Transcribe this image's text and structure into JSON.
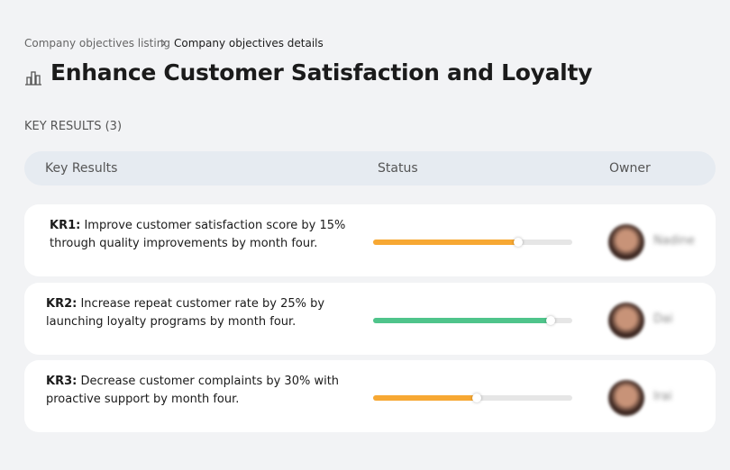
{
  "breadcrumb": [
    "Company objectives listing",
    "Company objectives details"
  ],
  "title": "Enhance Customer Satisfaction and Loyalty",
  "section_title": "KEY RESULTS (3)",
  "table": {
    "headers": [
      "Key Results",
      "Status",
      "Owner"
    ],
    "rows": [
      {
        "label": "KR1:",
        "text": "Improve customer satisfaction score by 15% through quality improvements by month four.",
        "progress": 73,
        "color": "#f7a833",
        "owner": "Nadine"
      },
      {
        "label": "KR2:",
        "text": "Increase repeat customer rate by 25% by launching loyalty programs by month four.",
        "progress": 89,
        "color": "#4fc48b",
        "owner": "Dai"
      },
      {
        "label": "KR3:",
        "text": "Decrease customer complaints by 30% with proactive support by month four.",
        "progress": 52,
        "color": "#f7a833",
        "owner": "Irai"
      }
    ]
  }
}
